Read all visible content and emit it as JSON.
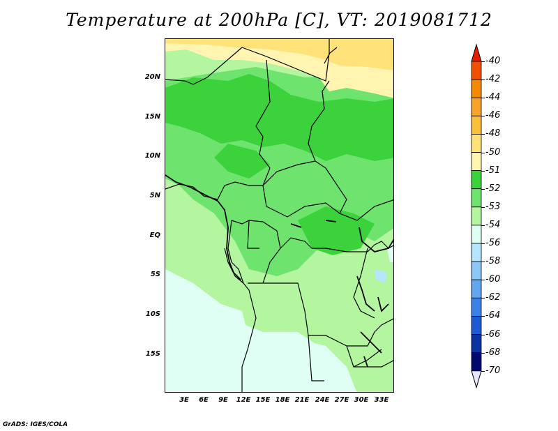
{
  "title": "Temperature at 200hPa [C], VT: 2019081712",
  "footer": "GrADS: IGES/COLA",
  "y_labels": [
    "20N",
    "15N",
    "10N",
    "5N",
    "EQ",
    "5S",
    "10S",
    "15S"
  ],
  "x_labels": [
    "3E",
    "6E",
    "9E",
    "12E",
    "15E",
    "18E",
    "21E",
    "24E",
    "27E",
    "30E",
    "33E"
  ],
  "colorbar": {
    "labels": [
      "-40",
      "-42",
      "-44",
      "-46",
      "-48",
      "-50",
      "-51",
      "-52",
      "-53",
      "-54",
      "-56",
      "-58",
      "-60",
      "-62",
      "-64",
      "-66",
      "-68",
      "-70"
    ],
    "colors": [
      "#e01e00",
      "#f05000",
      "#f58a00",
      "#f7a32a",
      "#fbc03a",
      "#ffe27a",
      "#fff4b0",
      "#3cd23c",
      "#6ee46e",
      "#b4f5a0",
      "#e0fff4",
      "#b4e6ff",
      "#8cc8f5",
      "#64a5f0",
      "#3c82e6",
      "#1e5ad2",
      "#0a32a0",
      "#000a6e"
    ]
  }
}
